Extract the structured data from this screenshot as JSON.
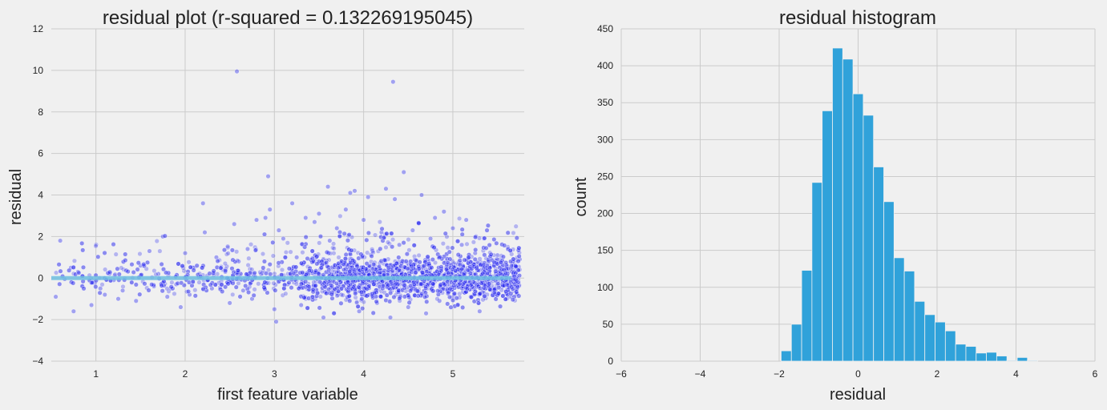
{
  "chart_data": [
    {
      "type": "scatter",
      "title": "residual plot  (r-squared = 0.132269195045)",
      "xlabel": "first feature variable",
      "ylabel": "residual",
      "xlim": [
        0.5,
        5.8
      ],
      "ylim": [
        -4,
        12
      ],
      "xticks": [
        1,
        2,
        3,
        4,
        5
      ],
      "yticks": [
        -4,
        -2,
        0,
        2,
        4,
        6,
        8,
        10,
        12
      ],
      "grid": true,
      "point_color": "#2b2bf0",
      "zero_line": {
        "y": 0,
        "x": [
          0.5,
          5.65
        ],
        "color": "#6fc0e0"
      },
      "points": [
        [
          0.55,
          -0.9
        ],
        [
          0.6,
          1.8
        ],
        [
          0.65,
          -0.05
        ],
        [
          0.72,
          0.5
        ],
        [
          0.75,
          -1.6
        ],
        [
          0.8,
          0.3
        ],
        [
          0.85,
          -0.4
        ],
        [
          0.95,
          -1.3
        ],
        [
          1.05,
          -0.5
        ],
        [
          1.1,
          -0.8
        ],
        [
          1.2,
          -0.1
        ],
        [
          1.25,
          -1.0
        ],
        [
          1.3,
          -0.6
        ],
        [
          1.4,
          -0.2
        ],
        [
          1.45,
          -1.1
        ],
        [
          1.5,
          0.6
        ],
        [
          1.6,
          1.3
        ],
        [
          1.65,
          -0.4
        ],
        [
          1.7,
          0.2
        ],
        [
          1.75,
          2.0
        ],
        [
          1.8,
          -0.9
        ],
        [
          1.9,
          -0.3
        ],
        [
          1.95,
          -1.4
        ],
        [
          2.0,
          1.2
        ],
        [
          2.05,
          -0.8
        ],
        [
          2.1,
          0.5
        ],
        [
          2.2,
          3.6
        ],
        [
          2.22,
          2.2
        ],
        [
          2.3,
          -0.5
        ],
        [
          2.35,
          1.0
        ],
        [
          2.45,
          0.3
        ],
        [
          2.5,
          -1.2
        ],
        [
          2.55,
          2.6
        ],
        [
          2.58,
          9.95
        ],
        [
          2.6,
          0.8
        ],
        [
          2.65,
          -0.6
        ],
        [
          2.7,
          1.4
        ],
        [
          2.75,
          -1.0
        ],
        [
          2.8,
          2.8
        ],
        [
          2.85,
          0.2
        ],
        [
          2.9,
          2.9
        ],
        [
          2.93,
          4.9
        ],
        [
          2.95,
          3.3
        ],
        [
          3.0,
          -1.5
        ],
        [
          3.02,
          -2.1
        ],
        [
          3.05,
          2.3
        ],
        [
          3.1,
          1.9
        ],
        [
          3.15,
          -0.3
        ],
        [
          3.2,
          3.6
        ],
        [
          3.25,
          1.0
        ],
        [
          3.3,
          -1.3
        ],
        [
          3.35,
          2.9
        ],
        [
          3.4,
          0.4
        ],
        [
          3.45,
          2.7
        ],
        [
          3.5,
          3.1
        ],
        [
          3.55,
          -1.9
        ],
        [
          3.6,
          4.4
        ],
        [
          3.62,
          1.8
        ],
        [
          3.7,
          2.4
        ],
        [
          3.75,
          -0.8
        ],
        [
          3.8,
          3.3
        ],
        [
          3.85,
          4.1
        ],
        [
          3.88,
          0.7
        ],
        [
          3.9,
          4.2
        ],
        [
          3.95,
          -1.6
        ],
        [
          4.0,
          2.8
        ],
        [
          4.05,
          3.9
        ],
        [
          4.1,
          1.3
        ],
        [
          4.15,
          -1.2
        ],
        [
          4.2,
          2.2
        ],
        [
          4.25,
          4.3
        ],
        [
          4.3,
          -1.9
        ],
        [
          4.33,
          9.45
        ],
        [
          4.35,
          3.8
        ],
        [
          4.4,
          1.6
        ],
        [
          4.45,
          5.1
        ],
        [
          4.5,
          -1.4
        ],
        [
          4.55,
          2.3
        ],
        [
          4.6,
          0.8
        ],
        [
          4.65,
          4.0
        ],
        [
          4.7,
          -1.7
        ],
        [
          4.75,
          1.9
        ],
        [
          4.8,
          2.9
        ],
        [
          4.85,
          -1.1
        ],
        [
          4.9,
          3.2
        ],
        [
          4.95,
          0.5
        ],
        [
          5.0,
          2.4
        ],
        [
          5.05,
          -1.3
        ],
        [
          5.1,
          1.6
        ],
        [
          5.15,
          2.8
        ],
        [
          5.2,
          -0.9
        ],
        [
          5.25,
          1.2
        ],
        [
          5.3,
          -1.6
        ],
        [
          5.35,
          1.9
        ],
        [
          5.4,
          0.4
        ],
        [
          5.45,
          -0.6
        ],
        [
          5.5,
          1.1
        ],
        [
          5.55,
          -0.3
        ],
        [
          5.6,
          0.6
        ],
        [
          5.65,
          -0.9
        ],
        [
          5.7,
          0.1
        ],
        [
          5.75,
          0.9
        ]
      ]
    },
    {
      "type": "bar",
      "title": "residual histogram",
      "xlabel": "residual",
      "ylabel": "count",
      "xlim": [
        -6,
        6
      ],
      "ylim": [
        0,
        450
      ],
      "xticks": [
        -6,
        -4,
        -2,
        0,
        2,
        4,
        6
      ],
      "yticks": [
        0,
        50,
        100,
        150,
        200,
        250,
        300,
        350,
        400,
        450
      ],
      "grid": true,
      "bar_color": "#30a2da",
      "bin_edges": [
        -1.95,
        -1.69,
        -1.43,
        -1.17,
        -0.91,
        -0.65,
        -0.39,
        -0.13,
        0.13,
        0.39,
        0.65,
        0.91,
        1.17,
        1.43,
        1.69,
        1.95,
        2.21,
        2.47,
        2.73,
        2.99,
        3.25,
        3.51,
        3.77,
        4.03,
        4.29,
        4.55
      ],
      "values": [
        14,
        50,
        123,
        242,
        339,
        424,
        409,
        362,
        333,
        263,
        216,
        140,
        122,
        81,
        63,
        53,
        41,
        23,
        20,
        11,
        12,
        7,
        1,
        5,
        1
      ]
    }
  ]
}
